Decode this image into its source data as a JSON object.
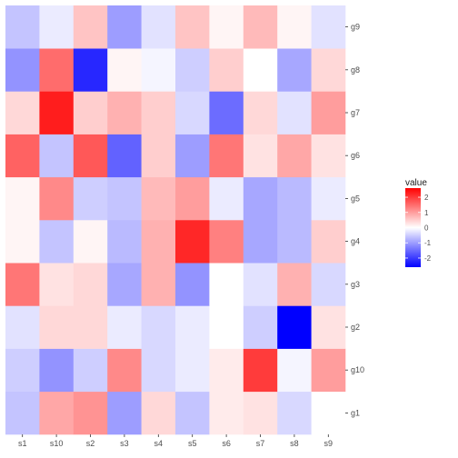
{
  "chart_data": {
    "type": "heatmap",
    "title": "",
    "xlabel": "",
    "ylabel": "",
    "x_categories": [
      "s1",
      "s10",
      "s2",
      "s3",
      "s4",
      "s5",
      "s6",
      "s7",
      "s8",
      "s9"
    ],
    "y_categories": [
      "g1",
      "g10",
      "g2",
      "g3",
      "g4",
      "g5",
      "g6",
      "g7",
      "g8",
      "g9"
    ],
    "values": [
      [
        -0.6,
        0.9,
        1.1,
        -1.0,
        0.4,
        -0.6,
        0.2,
        0.3,
        -0.4,
        0.0
      ],
      [
        -0.5,
        -1.1,
        -0.5,
        1.2,
        -0.4,
        -0.2,
        0.2,
        2.0,
        -0.1,
        1.0
      ],
      [
        -0.3,
        0.4,
        0.4,
        -0.2,
        -0.4,
        -0.2,
        0.0,
        -0.5,
        -2.6,
        0.3
      ],
      [
        1.4,
        0.3,
        0.4,
        -0.9,
        0.8,
        -1.1,
        0.0,
        -0.3,
        0.8,
        -0.4
      ],
      [
        0.1,
        -0.6,
        0.1,
        -0.7,
        0.8,
        2.2,
        1.3,
        -0.9,
        -0.7,
        0.5
      ],
      [
        0.1,
        1.2,
        -0.5,
        -0.6,
        0.7,
        1.0,
        -0.2,
        -0.9,
        -0.7,
        -0.2
      ],
      [
        1.6,
        -0.6,
        1.7,
        -1.6,
        0.5,
        -1.0,
        1.4,
        0.3,
        0.9,
        0.3
      ],
      [
        0.4,
        2.3,
        0.5,
        0.8,
        0.5,
        -0.4,
        -1.5,
        0.4,
        -0.3,
        1.0
      ],
      [
        -1.1,
        1.5,
        -2.2,
        0.1,
        -0.1,
        -0.5,
        0.5,
        0.0,
        -0.9,
        0.4
      ],
      [
        -0.6,
        -0.2,
        0.6,
        -1.0,
        -0.3,
        0.6,
        0.1,
        0.7,
        0.1,
        -0.3
      ]
    ],
    "legend": {
      "title": "value",
      "ticks": [
        2,
        1,
        0,
        -1,
        -2
      ],
      "tick_labels": [
        "2",
        "1",
        "0",
        "-1",
        "-2"
      ],
      "placement": "right"
    },
    "color_scale": {
      "low": "#0000ff",
      "mid": "#ffffff",
      "high": "#ff0000",
      "min": -2.6,
      "max": 2.6
    },
    "panel_background": "#ebebeb",
    "grid": false
  }
}
